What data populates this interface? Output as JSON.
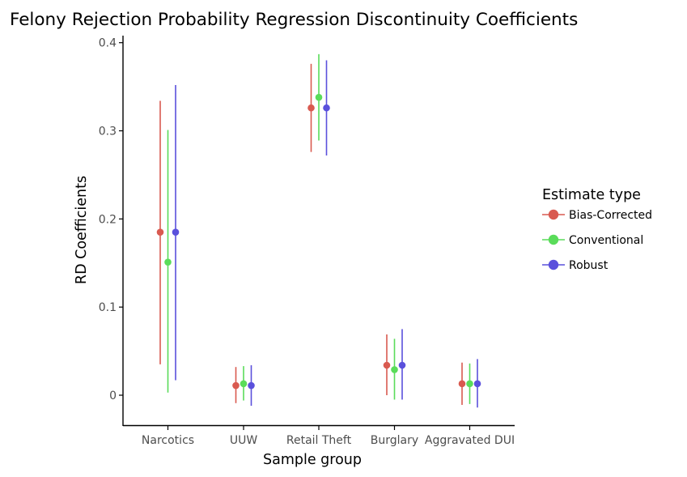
{
  "chart_data": {
    "type": "scatter",
    "subtype": "point-range",
    "title": "Felony Rejection Probability Regression Discontinuity Coefficients",
    "xlabel": "Sample group",
    "ylabel": "RD Coefficients",
    "categories": [
      "Narcotics",
      "UUW",
      "Retail Theft",
      "Burglary",
      "Aggravated DUI"
    ],
    "ylim": [
      -0.034,
      0.408
    ],
    "yticks": [
      0,
      0.1,
      0.2,
      0.3,
      0.4
    ],
    "ytick_labels": [
      "0",
      "0.1",
      "0.2",
      "0.3",
      "0.4"
    ],
    "grid": false,
    "legend": {
      "title": "Estimate type",
      "position": "right"
    },
    "series": [
      {
        "name": "Bias-Corrected",
        "color": "#d95a50",
        "points": [
          {
            "y": 0.185,
            "low": 0.035,
            "high": 0.334
          },
          {
            "y": 0.011,
            "low": -0.009,
            "high": 0.032
          },
          {
            "y": 0.326,
            "low": 0.276,
            "high": 0.376
          },
          {
            "y": 0.034,
            "low": 0.0,
            "high": 0.069
          },
          {
            "y": 0.013,
            "low": -0.011,
            "high": 0.037
          }
        ]
      },
      {
        "name": "Conventional",
        "color": "#5adc5a",
        "points": [
          {
            "y": 0.151,
            "low": 0.003,
            "high": 0.301
          },
          {
            "y": 0.013,
            "low": -0.006,
            "high": 0.033
          },
          {
            "y": 0.338,
            "low": 0.289,
            "high": 0.387
          },
          {
            "y": 0.029,
            "low": -0.005,
            "high": 0.064
          },
          {
            "y": 0.013,
            "low": -0.01,
            "high": 0.036
          }
        ]
      },
      {
        "name": "Robust",
        "color": "#5a50dc",
        "points": [
          {
            "y": 0.185,
            "low": 0.017,
            "high": 0.352
          },
          {
            "y": 0.011,
            "low": -0.012,
            "high": 0.034
          },
          {
            "y": 0.326,
            "low": 0.272,
            "high": 0.38
          },
          {
            "y": 0.034,
            "low": -0.005,
            "high": 0.075
          },
          {
            "y": 0.013,
            "low": -0.014,
            "high": 0.041
          }
        ]
      }
    ]
  }
}
